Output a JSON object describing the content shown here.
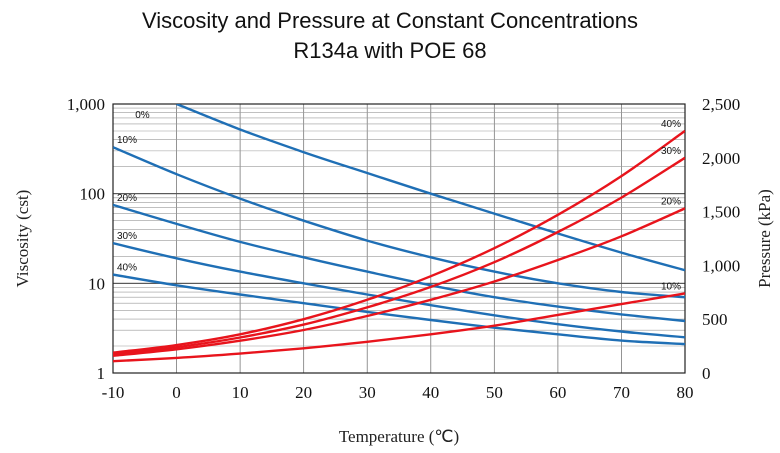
{
  "chart_data": {
    "type": "line",
    "title": "Viscosity and Pressure at Constant Concentrations",
    "subtitle": "R134a with POE 68",
    "xlabel": "Temperature (℃)",
    "ylabel_left": "Viscosity (cst)",
    "ylabel_right": "Pressure (kPa)",
    "x_ticks": [
      "-10",
      "0",
      "10",
      "20",
      "30",
      "40",
      "50",
      "60",
      "70",
      "80"
    ],
    "xlim": [
      -10,
      80
    ],
    "y_left_ticks": [
      "1",
      "10",
      "100",
      "1,000"
    ],
    "y_left_scale": "log",
    "y_left_lim": [
      1,
      1000
    ],
    "y_right_ticks": [
      "0",
      "500",
      "1,000",
      "1,500",
      "2,000",
      "2,500"
    ],
    "y_right_lim": [
      0,
      2500
    ],
    "grid": true,
    "viscosity_series": [
      {
        "name": "0%",
        "color": "#1f6fb5",
        "x": [
          0,
          10,
          20,
          30,
          40,
          50,
          60,
          70,
          80
        ],
        "values": [
          1000,
          520,
          290,
          170,
          100,
          60,
          36,
          22,
          14
        ]
      },
      {
        "name": "10%",
        "color": "#1f6fb5",
        "x": [
          -10,
          0,
          10,
          20,
          30,
          40,
          50,
          60,
          70,
          80
        ],
        "values": [
          330,
          165,
          88,
          50,
          30,
          19.5,
          13.5,
          10,
          8,
          7
        ]
      },
      {
        "name": "20%",
        "color": "#1f6fb5",
        "x": [
          -10,
          0,
          10,
          20,
          30,
          40,
          50,
          60,
          70,
          80
        ],
        "values": [
          75,
          46,
          29,
          19.5,
          13.5,
          9.5,
          7,
          5.5,
          4.5,
          3.8
        ]
      },
      {
        "name": "30%",
        "color": "#1f6fb5",
        "x": [
          -10,
          0,
          10,
          20,
          30,
          40,
          50,
          60,
          70,
          80
        ],
        "values": [
          28,
          19,
          13.5,
          10,
          7.5,
          5.7,
          4.4,
          3.5,
          2.9,
          2.5
        ]
      },
      {
        "name": "40%",
        "color": "#1f6fb5",
        "x": [
          -10,
          0,
          10,
          20,
          30,
          40,
          50,
          60,
          70,
          80
        ],
        "values": [
          12.5,
          9.5,
          7.5,
          6,
          4.8,
          3.9,
          3.2,
          2.7,
          2.3,
          2.1
        ]
      }
    ],
    "pressure_series": [
      {
        "name": "10%",
        "color": "#e8141c",
        "x": [
          -10,
          0,
          10,
          20,
          30,
          40,
          50,
          60,
          70,
          80
        ],
        "values": [
          110,
          140,
          180,
          230,
          290,
          360,
          440,
          540,
          640,
          740
        ]
      },
      {
        "name": "20%",
        "color": "#e8141c",
        "x": [
          -10,
          0,
          10,
          20,
          30,
          40,
          50,
          60,
          70,
          80
        ],
        "values": [
          160,
          220,
          300,
          400,
          530,
          680,
          850,
          1050,
          1270,
          1530
        ]
      },
      {
        "name": "30%",
        "color": "#e8141c",
        "x": [
          -10,
          0,
          10,
          20,
          30,
          40,
          50,
          60,
          70,
          80
        ],
        "values": [
          175,
          240,
          330,
          450,
          610,
          800,
          1030,
          1310,
          1630,
          2000
        ]
      },
      {
        "name": "40%",
        "color": "#e8141c",
        "x": [
          -10,
          0,
          10,
          20,
          30,
          40,
          50,
          60,
          70,
          80
        ],
        "values": [
          190,
          260,
          360,
          500,
          680,
          900,
          1160,
          1470,
          1830,
          2250
        ]
      }
    ]
  }
}
